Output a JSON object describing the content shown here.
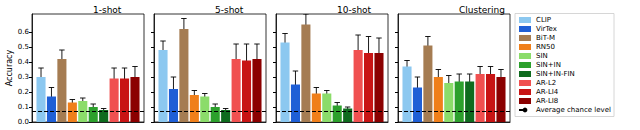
{
  "chart_data": [
    {
      "type": "bar",
      "title": "1-shot",
      "y_label": "Accuracy",
      "tick_labels": "y",
      "grid": false,
      "categories": [
        null
      ],
      "ylim": [
        0,
        0.72
      ],
      "yticks": [
        {
          "value": 0,
          "label": "0.0"
        },
        {
          "value": 0.1,
          "label": "0.1"
        },
        {
          "value": 0.2,
          "label": "0.2"
        },
        {
          "value": 0.3,
          "label": "0.3"
        },
        {
          "value": 0.4,
          "label": "0.4"
        },
        {
          "value": 0.5,
          "label": "0.5"
        },
        {
          "value": 0.6,
          "label": "0.6"
        }
      ],
      "series": [
        {
          "name": "CLIP",
          "color": "#8cc8f0",
          "values": [
            0.3
          ],
          "errors": [
            0.06
          ]
        },
        {
          "name": "VirTex",
          "color": "#1f5fd6",
          "values": [
            0.17
          ],
          "errors": [
            0.06
          ]
        },
        {
          "name": "BiT-M",
          "color": "#a57c52",
          "values": [
            0.42
          ],
          "errors": [
            0.06
          ]
        },
        {
          "name": "RN50",
          "color": "#f07f1a",
          "values": [
            0.13
          ],
          "errors": [
            0.02
          ]
        },
        {
          "name": "SIN",
          "color": "#8bdc6a",
          "values": [
            0.14
          ],
          "errors": [
            0.02
          ]
        },
        {
          "name": "SIN+IN",
          "color": "#2ca02c",
          "values": [
            0.1
          ],
          "errors": [
            0.02
          ]
        },
        {
          "name": "SIN+IN-FIN",
          "color": "#0e6b1e",
          "values": [
            0.08
          ],
          "errors": [
            0.01
          ]
        },
        {
          "name": "AR-L2",
          "color": "#f05050",
          "values": [
            0.29
          ],
          "errors": [
            0.07
          ]
        },
        {
          "name": "AR-LI4",
          "color": "#c81414",
          "values": [
            0.29
          ],
          "errors": [
            0.07
          ]
        },
        {
          "name": "AR-LI8",
          "color": "#8b0000",
          "values": [
            0.3
          ],
          "errors": [
            0.07
          ]
        },
        {
          "name": "Average chance level",
          "type": "line",
          "line_style": "dashed",
          "color": "#000000",
          "values": [
            0.07
          ]
        }
      ]
    },
    {
      "type": "bar",
      "title": "5-shot",
      "tick_labels": false,
      "grid": false,
      "categories": [
        null
      ],
      "ylim": [
        0,
        0.72
      ],
      "yticks": [
        {
          "value": 0,
          "label": "0.0"
        },
        {
          "value": 0.1,
          "label": "0.1"
        },
        {
          "value": 0.2,
          "label": "0.2"
        },
        {
          "value": 0.3,
          "label": "0.3"
        },
        {
          "value": 0.4,
          "label": "0.4"
        },
        {
          "value": 0.5,
          "label": "0.5"
        },
        {
          "value": 0.6,
          "label": "0.6"
        }
      ],
      "series": [
        {
          "name": "CLIP",
          "color": "#8cc8f0",
          "values": [
            0.48
          ],
          "errors": [
            0.06
          ]
        },
        {
          "name": "VirTex",
          "color": "#1f5fd6",
          "values": [
            0.22
          ],
          "errors": [
            0.08
          ]
        },
        {
          "name": "BiT-M",
          "color": "#a57c52",
          "values": [
            0.62
          ],
          "errors": [
            0.07
          ]
        },
        {
          "name": "RN50",
          "color": "#f07f1a",
          "values": [
            0.18
          ],
          "errors": [
            0.03
          ]
        },
        {
          "name": "SIN",
          "color": "#8bdc6a",
          "values": [
            0.17
          ],
          "errors": [
            0.02
          ]
        },
        {
          "name": "SIN+IN",
          "color": "#2ca02c",
          "values": [
            0.1
          ],
          "errors": [
            0.02
          ]
        },
        {
          "name": "SIN+IN-FIN",
          "color": "#0e6b1e",
          "values": [
            0.08
          ],
          "errors": [
            0.01
          ]
        },
        {
          "name": "AR-L2",
          "color": "#f05050",
          "values": [
            0.42
          ],
          "errors": [
            0.1
          ]
        },
        {
          "name": "AR-LI4",
          "color": "#c81414",
          "values": [
            0.41
          ],
          "errors": [
            0.11
          ]
        },
        {
          "name": "AR-LI8",
          "color": "#8b0000",
          "values": [
            0.42
          ],
          "errors": [
            0.1
          ]
        },
        {
          "name": "Average chance level",
          "type": "line",
          "line_style": "dashed",
          "color": "#000000",
          "values": [
            0.07
          ]
        }
      ]
    },
    {
      "type": "bar",
      "title": "10-shot",
      "tick_labels": false,
      "grid": false,
      "categories": [
        null
      ],
      "ylim": [
        0,
        0.72
      ],
      "yticks": [
        {
          "value": 0,
          "label": "0.0"
        },
        {
          "value": 0.1,
          "label": "0.1"
        },
        {
          "value": 0.2,
          "label": "0.2"
        },
        {
          "value": 0.3,
          "label": "0.3"
        },
        {
          "value": 0.4,
          "label": "0.4"
        },
        {
          "value": 0.5,
          "label": "0.5"
        },
        {
          "value": 0.6,
          "label": "0.6"
        }
      ],
      "series": [
        {
          "name": "CLIP",
          "color": "#8cc8f0",
          "values": [
            0.53
          ],
          "errors": [
            0.06
          ]
        },
        {
          "name": "VirTex",
          "color": "#1f5fd6",
          "values": [
            0.25
          ],
          "errors": [
            0.09
          ]
        },
        {
          "name": "BiT-M",
          "color": "#a57c52",
          "values": [
            0.65
          ],
          "errors": [
            0.07
          ]
        },
        {
          "name": "RN50",
          "color": "#f07f1a",
          "values": [
            0.19
          ],
          "errors": [
            0.04
          ]
        },
        {
          "name": "SIN",
          "color": "#8bdc6a",
          "values": [
            0.19
          ],
          "errors": [
            0.02
          ]
        },
        {
          "name": "SIN+IN",
          "color": "#2ca02c",
          "values": [
            0.11
          ],
          "errors": [
            0.02
          ]
        },
        {
          "name": "SIN+IN-FIN",
          "color": "#0e6b1e",
          "values": [
            0.09
          ],
          "errors": [
            0.01
          ]
        },
        {
          "name": "AR-L2",
          "color": "#f05050",
          "values": [
            0.48
          ],
          "errors": [
            0.1
          ]
        },
        {
          "name": "AR-LI4",
          "color": "#c81414",
          "values": [
            0.46
          ],
          "errors": [
            0.11
          ]
        },
        {
          "name": "AR-LI8",
          "color": "#8b0000",
          "values": [
            0.46
          ],
          "errors": [
            0.1
          ]
        },
        {
          "name": "Average chance level",
          "type": "line",
          "line_style": "dashed",
          "color": "#000000",
          "values": [
            0.07
          ]
        }
      ]
    },
    {
      "type": "bar",
      "title": "Clustering",
      "tick_labels": false,
      "grid": false,
      "legend": "right",
      "categories": [
        null
      ],
      "ylim": [
        0,
        0.72
      ],
      "yticks": [
        {
          "value": 0,
          "label": "0.0"
        },
        {
          "value": 0.1,
          "label": "0.1"
        },
        {
          "value": 0.2,
          "label": "0.2"
        },
        {
          "value": 0.3,
          "label": "0.3"
        },
        {
          "value": 0.4,
          "label": "0.4"
        },
        {
          "value": 0.5,
          "label": "0.5"
        },
        {
          "value": 0.6,
          "label": "0.6"
        }
      ],
      "series": [
        {
          "name": "CLIP",
          "color": "#8cc8f0",
          "values": [
            0.37
          ],
          "errors": [
            0.04
          ]
        },
        {
          "name": "VirTex",
          "color": "#1f5fd6",
          "values": [
            0.23
          ],
          "errors": [
            0.07
          ]
        },
        {
          "name": "BiT-M",
          "color": "#a57c52",
          "values": [
            0.51
          ],
          "errors": [
            0.06
          ]
        },
        {
          "name": "RN50",
          "color": "#f07f1a",
          "values": [
            0.3
          ],
          "errors": [
            0.05
          ]
        },
        {
          "name": "SIN",
          "color": "#8bdc6a",
          "values": [
            0.26
          ],
          "errors": [
            0.05
          ]
        },
        {
          "name": "SIN+IN",
          "color": "#2ca02c",
          "values": [
            0.27
          ],
          "errors": [
            0.05
          ]
        },
        {
          "name": "SIN+IN-FIN",
          "color": "#0e6b1e",
          "values": [
            0.27
          ],
          "errors": [
            0.05
          ]
        },
        {
          "name": "AR-L2",
          "color": "#f05050",
          "values": [
            0.32
          ],
          "errors": [
            0.05
          ]
        },
        {
          "name": "AR-LI4",
          "color": "#c81414",
          "values": [
            0.32
          ],
          "errors": [
            0.05
          ]
        },
        {
          "name": "AR-LI8",
          "color": "#8b0000",
          "values": [
            0.3
          ],
          "errors": [
            0.05
          ]
        },
        {
          "name": "Average chance level",
          "type": "line",
          "line_style": "dashed",
          "color": "#000000",
          "values": [
            0.07
          ]
        }
      ]
    }
  ]
}
